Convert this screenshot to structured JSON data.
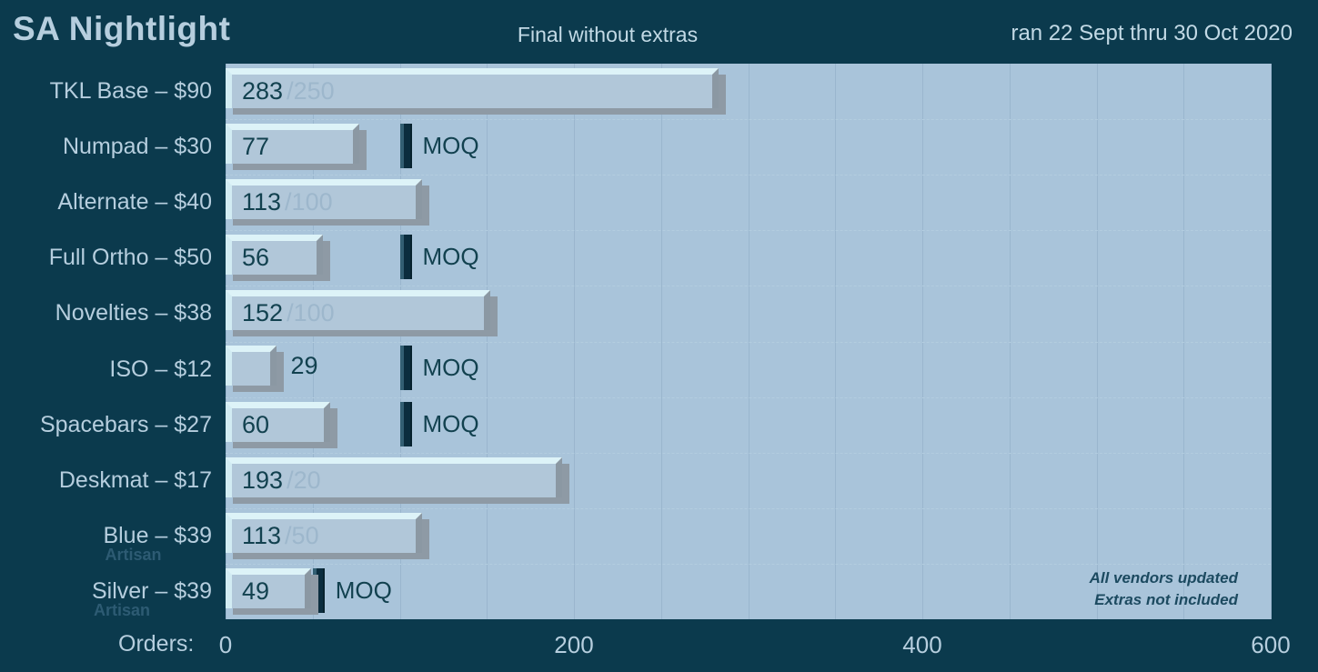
{
  "header": {
    "title": "SA Nightlight",
    "subtitle": "Final without extras",
    "date_range": "ran 22 Sept thru 30 Oct 2020"
  },
  "chart_data": {
    "type": "bar",
    "orientation": "horizontal",
    "title": "SA Nightlight",
    "subtitle": "Final without extras",
    "date_range": "ran 22 Sept thru 30 Oct 2020",
    "xlabel": "Orders:",
    "xlim": [
      0,
      600
    ],
    "xticks": [
      0,
      200,
      400,
      600
    ],
    "grid_step": 50,
    "grid": true,
    "moq_marker_label": "MOQ",
    "annotations": [
      "All vendors updated",
      "Extras not included"
    ],
    "bars": [
      {
        "label": "TKL Base – $90",
        "sublabel": null,
        "value": 283,
        "goal": 250,
        "moq": null,
        "label_outside": false
      },
      {
        "label": "Numpad – $30",
        "sublabel": null,
        "value": 77,
        "goal": null,
        "moq": 100,
        "label_outside": false
      },
      {
        "label": "Alternate – $40",
        "sublabel": null,
        "value": 113,
        "goal": 100,
        "moq": null,
        "label_outside": false
      },
      {
        "label": "Full Ortho – $50",
        "sublabel": null,
        "value": 56,
        "goal": null,
        "moq": 100,
        "label_outside": false
      },
      {
        "label": "Novelties – $38",
        "sublabel": null,
        "value": 152,
        "goal": 100,
        "moq": null,
        "label_outside": false
      },
      {
        "label": "ISO – $12",
        "sublabel": null,
        "value": 29,
        "goal": null,
        "moq": 100,
        "label_outside": true
      },
      {
        "label": "Spacebars – $27",
        "sublabel": null,
        "value": 60,
        "goal": null,
        "moq": 100,
        "label_outside": false
      },
      {
        "label": "Deskmat – $17",
        "sublabel": null,
        "value": 193,
        "goal": 20,
        "moq": null,
        "label_outside": false
      },
      {
        "label": "Blue – $39",
        "sublabel": "Artisan",
        "value": 113,
        "goal": 50,
        "moq": null,
        "label_outside": false
      },
      {
        "label": "Silver – $39",
        "sublabel": "Artisan",
        "value": 49,
        "goal": null,
        "moq": 50,
        "label_outside": false
      }
    ]
  },
  "colors": {
    "background": "#0b3a4d",
    "plot_bg": "#a9c4da",
    "grid_v": "#9ab6ce",
    "grid_h": "#b3cddf",
    "bar_face": "#b1c7d9",
    "bar_light": "#ddf3f8",
    "bar_light2": "#d2ecf3",
    "bar_bevel_dark": "#8b98a3",
    "bar_shadow": "#8e9aa5",
    "moq_marker": "#0b2d3e",
    "moq_highlight": "#335f73",
    "moq_dark_edge": "#07222e",
    "text_dark": "#12414f",
    "goal_text": "#9db7cc",
    "text_light": "#b6cede",
    "text_lighter": "#c2d9e5",
    "artisan_text": "#2d5b73",
    "annotation_text": "#1c4a60"
  }
}
